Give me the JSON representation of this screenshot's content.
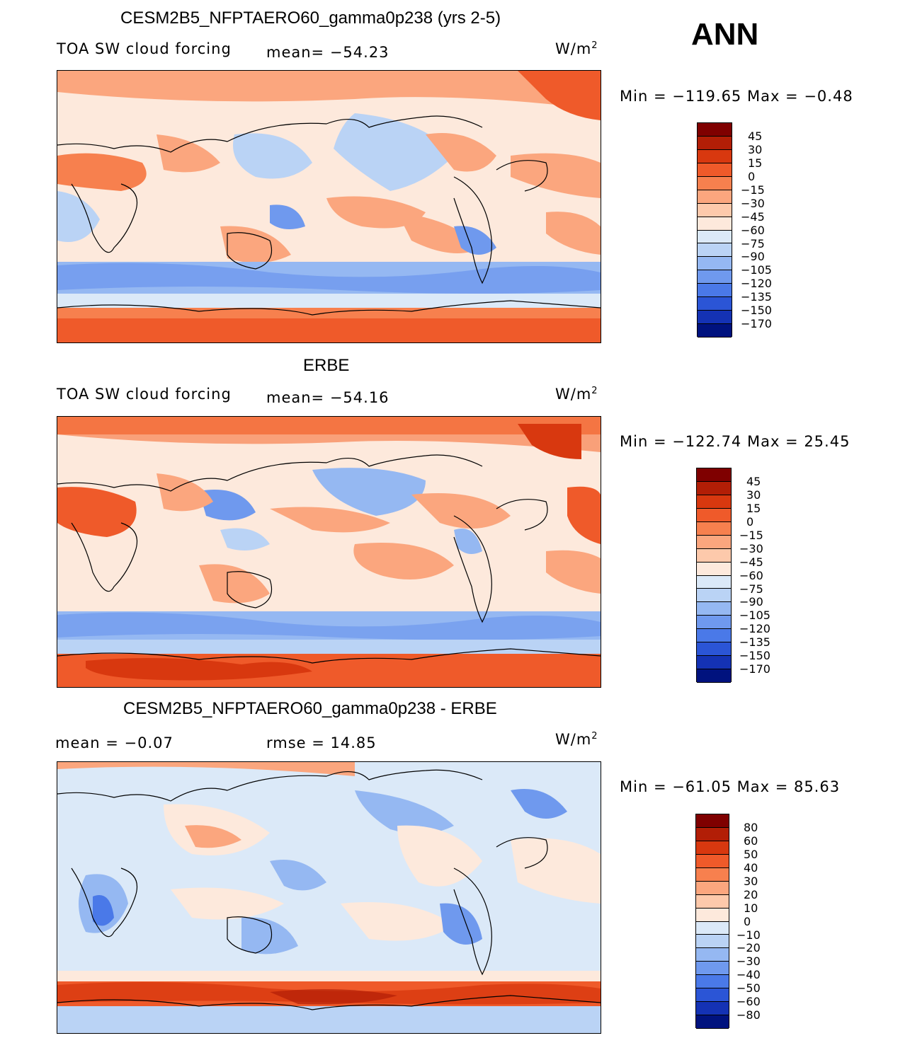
{
  "season": "ANN",
  "panels": [
    {
      "id": "model",
      "title": "CESM2B5_NFPTAERO60_gamma0p238 (yrs 2-5)",
      "left_label": "TOA SW cloud forcing",
      "mid_label": "mean=  −54.23",
      "units": "W/m",
      "units_sup": "2",
      "minmax": "Min  =  −119.65  Max  =    −0.48",
      "scale": "abs"
    },
    {
      "id": "obs",
      "title": "ERBE",
      "left_label": "TOA SW cloud forcing",
      "mid_label": "mean=  −54.16",
      "units": "W/m",
      "units_sup": "2",
      "minmax": "Min  =  −122.74  Max  =    25.45",
      "scale": "abs"
    },
    {
      "id": "diff",
      "title": "CESM2B5_NFPTAERO60_gamma0p238 - ERBE",
      "left_label": "mean  =     −0.07",
      "mid_label": "rmse  =     14.85",
      "units": "W/m",
      "units_sup": "2",
      "minmax": "Min  =  −61.05  Max  =    85.63",
      "scale": "diff"
    }
  ],
  "colorbars": {
    "abs": {
      "labels": [
        "45",
        "30",
        "15",
        "0",
        "−15",
        "−30",
        "−45",
        "−60",
        "−75",
        "−90",
        "−105",
        "−120",
        "−135",
        "−150",
        "−170"
      ],
      "colors": [
        "#7f0000",
        "#b21e06",
        "#d8380f",
        "#ef5a2a",
        "#f7804e",
        "#fba67e",
        "#fdc9ab",
        "#fde9dc",
        "#dbe9f8",
        "#bad3f5",
        "#95b8f2",
        "#6f99ee",
        "#4a79e8",
        "#2b55d6",
        "#1432b4",
        "#00127e"
      ]
    },
    "diff": {
      "labels": [
        "80",
        "60",
        "50",
        "40",
        "30",
        "20",
        "10",
        "0",
        "−10",
        "−20",
        "−30",
        "−40",
        "−50",
        "−60",
        "−80"
      ],
      "colors": [
        "#7f0000",
        "#b21e06",
        "#d8380f",
        "#ef5a2a",
        "#f7804e",
        "#fba67e",
        "#fdc9ab",
        "#fde9dc",
        "#dbe9f8",
        "#bad3f5",
        "#95b8f2",
        "#6f99ee",
        "#4a79e8",
        "#2b55d6",
        "#1432b4",
        "#00127e"
      ]
    }
  }
}
